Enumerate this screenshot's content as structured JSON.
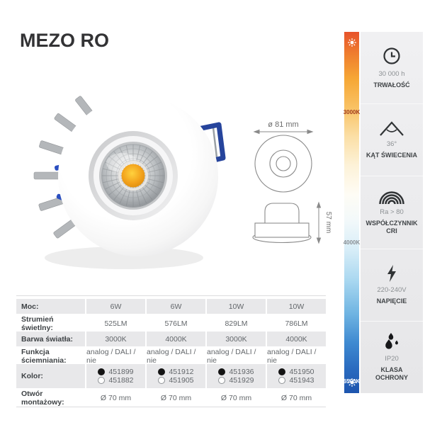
{
  "page": {
    "title": "MEZO RO"
  },
  "product_photo": {
    "description": "white round recessed LED downlight with silver faceted reflector, amber COB LED, blue mounting spring and heatsink fins"
  },
  "drawings": {
    "diameter_label": "ø 81 mm",
    "height_label": "57 mm"
  },
  "temp_bar": {
    "top_icon": "sun-icon",
    "bottom_icon": "sun-icon",
    "labels": [
      {
        "text": "3000K"
      },
      {
        "text": "4000K"
      },
      {
        "text": "6500K"
      }
    ],
    "colors": {
      "warm": "#e7532b",
      "neutral": "#fefcf5",
      "cool": "#1d55ae"
    }
  },
  "features": [
    {
      "icon": "clock-icon",
      "value": "30 000 h",
      "label": "TRWAŁOŚĆ"
    },
    {
      "icon": "beam-angle-icon",
      "value": "36°",
      "label": "KĄT ŚWIECENIA"
    },
    {
      "icon": "cri-arcs-icon",
      "value": "Ra > 80",
      "label": "WSPÓŁCZYNNIK\nCRI"
    },
    {
      "icon": "lightning-icon",
      "value": "220-240V",
      "label": "NAPIĘCIE"
    },
    {
      "icon": "water-drops-icon",
      "value": "IP20",
      "label": "KLASA\nOCHRONY"
    }
  ],
  "spec_table": {
    "rows": [
      {
        "label": "Moc:",
        "values": [
          "6W",
          "6W",
          "10W",
          "10W"
        ]
      },
      {
        "label": "Strumień świetlny:",
        "values": [
          "525LM",
          "576LM",
          "829LM",
          "786LM"
        ]
      },
      {
        "label": "Barwa światła:",
        "values": [
          "3000K",
          "4000K",
          "3000K",
          "4000K"
        ]
      },
      {
        "label": "Funkcja ściemniania:",
        "values": [
          "analog / DALI / nie",
          "analog / DALI / nie",
          "analog / DALI / nie",
          "analog / DALI / nie"
        ]
      },
      {
        "label": "Kolor:",
        "color_options": [
          {
            "black_code": "451899",
            "white_code": "451882"
          },
          {
            "black_code": "451912",
            "white_code": "451905"
          },
          {
            "black_code": "451936",
            "white_code": "451929"
          },
          {
            "black_code": "451950",
            "white_code": "451943"
          }
        ]
      },
      {
        "label": "Otwór montażowy:",
        "values": [
          "Ø 70 mm",
          "Ø 70 mm",
          "Ø 70 mm",
          "Ø 70 mm"
        ]
      }
    ]
  }
}
